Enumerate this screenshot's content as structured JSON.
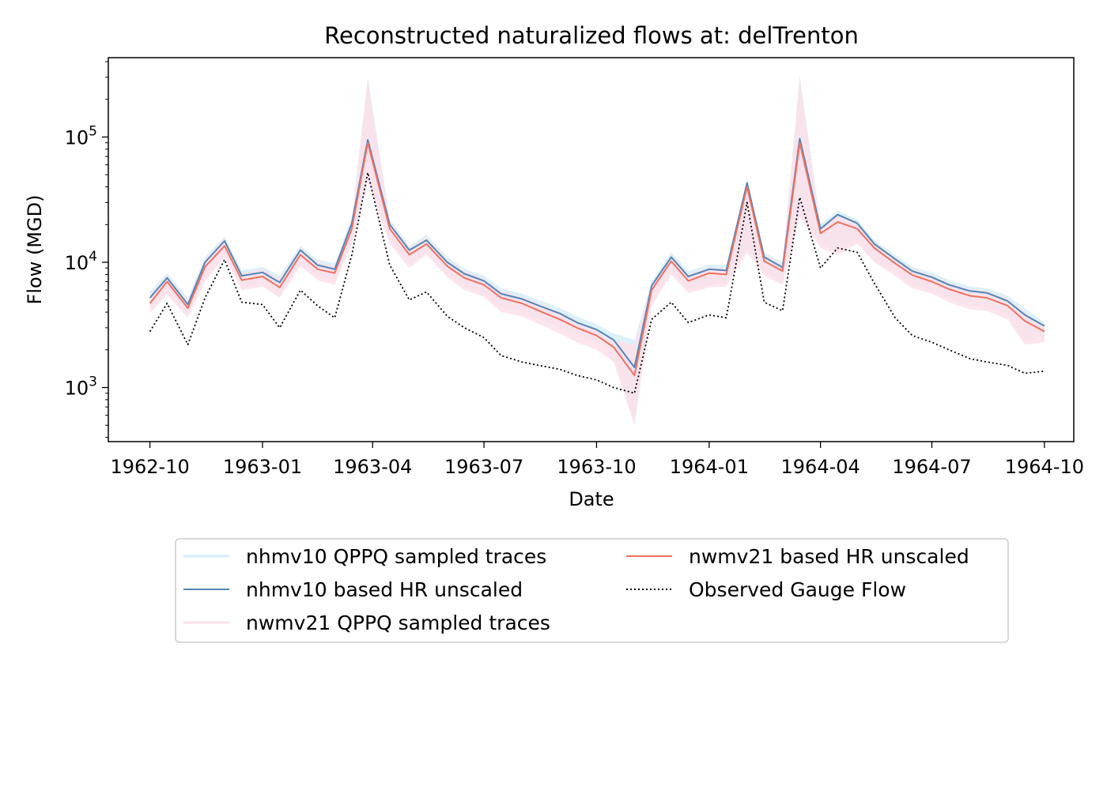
{
  "chart_data": {
    "type": "line",
    "title": "Reconstructed naturalized flows at: delTrenton",
    "xlabel": "Date",
    "ylabel": "Flow (MGD)",
    "yscale": "log",
    "xlim": [
      "1962-08-28",
      "1964-10-25"
    ],
    "ylim": [
      370,
      430000
    ],
    "x_ticks": [
      "1962-10",
      "1963-01",
      "1963-04",
      "1963-07",
      "1963-10",
      "1964-01",
      "1964-04",
      "1964-07",
      "1964-10"
    ],
    "y_ticks": [
      {
        "value": 1000,
        "base": "10",
        "exp": "3"
      },
      {
        "value": 10000,
        "base": "10",
        "exp": "4"
      },
      {
        "value": 100000,
        "base": "10",
        "exp": "5"
      }
    ],
    "legend_position": "below",
    "x": [
      "1962-10-01",
      "1962-10-15",
      "1962-11-01",
      "1962-11-15",
      "1962-12-01",
      "1962-12-15",
      "1963-01-01",
      "1963-01-15",
      "1963-02-01",
      "1963-02-15",
      "1963-03-01",
      "1963-03-15",
      "1963-03-28",
      "1963-04-15",
      "1963-05-01",
      "1963-05-15",
      "1963-06-01",
      "1963-06-15",
      "1963-07-01",
      "1963-07-15",
      "1963-08-01",
      "1963-08-15",
      "1963-09-01",
      "1963-09-15",
      "1963-10-01",
      "1963-10-15",
      "1963-11-01",
      "1963-11-15",
      "1963-12-01",
      "1963-12-15",
      "1964-01-01",
      "1964-01-15",
      "1964-02-01",
      "1964-02-15",
      "1964-03-01",
      "1964-03-15",
      "1964-04-01",
      "1964-04-15",
      "1964-05-01",
      "1964-05-15",
      "1964-06-01",
      "1964-06-15",
      "1964-07-01",
      "1964-07-15",
      "1964-08-01",
      "1964-08-15",
      "1964-09-01",
      "1964-09-15",
      "1964-10-01"
    ],
    "series": [
      {
        "name": "nhmv10 QPPQ sampled traces",
        "color": "#d6eef8",
        "style": "band",
        "low": [
          4200,
          5800,
          3800,
          7500,
          11500,
          6300,
          6800,
          5500,
          9800,
          7600,
          7000,
          14500,
          45000,
          15000,
          9500,
          12000,
          8000,
          6400,
          5600,
          4300,
          4000,
          3500,
          3000,
          2600,
          2300,
          1900,
          500,
          4800,
          8500,
          6000,
          6600,
          6800,
          13000,
          8200,
          7000,
          24000,
          14000,
          12000,
          15000,
          10500,
          8200,
          6500,
          5900,
          5100,
          4500,
          4400,
          3800,
          2400,
          2500
        ],
        "high": [
          5800,
          8200,
          5200,
          11000,
          16000,
          8600,
          9200,
          7800,
          13500,
          10500,
          9800,
          23000,
          300000,
          22000,
          13500,
          16500,
          11000,
          8900,
          7800,
          6200,
          5600,
          5000,
          4300,
          3700,
          3200,
          2700,
          2400,
          7000,
          12000,
          8500,
          9600,
          9500,
          46000,
          12000,
          10000,
          310000,
          20000,
          26000,
          22000,
          15000,
          11500,
          9200,
          8300,
          7200,
          6400,
          6200,
          5400,
          4300,
          3300
        ]
      },
      {
        "name": "nhmv10 based HR unscaled",
        "color": "#4f86b9",
        "style": "solid",
        "values": [
          5200,
          7500,
          4600,
          10000,
          14800,
          7800,
          8300,
          6900,
          12500,
          9500,
          8800,
          20500,
          95000,
          20000,
          12500,
          15000,
          10000,
          8100,
          7100,
          5600,
          5100,
          4500,
          3900,
          3300,
          2900,
          2400,
          1450,
          6500,
          11000,
          7700,
          8800,
          8600,
          43000,
          11000,
          9100,
          97000,
          18500,
          24000,
          20500,
          14000,
          10600,
          8500,
          7600,
          6600,
          5900,
          5700,
          4900,
          3800,
          3100
        ]
      },
      {
        "name": "nwmv21 QPPQ sampled traces",
        "color": "#fde0ea",
        "style": "band",
        "low": [
          3900,
          5500,
          3600,
          7000,
          11000,
          6000,
          6400,
          5200,
          9300,
          7200,
          6600,
          14000,
          44000,
          14000,
          9000,
          11500,
          7600,
          6000,
          5300,
          4000,
          3700,
          3200,
          2700,
          2300,
          2000,
          1600,
          500,
          4500,
          8000,
          5700,
          6300,
          6400,
          12000,
          7800,
          6600,
          23000,
          13000,
          11500,
          14000,
          10000,
          7800,
          6200,
          5600,
          4800,
          4200,
          4100,
          3500,
          2200,
          2300
        ],
        "high": [
          5500,
          7800,
          5000,
          10500,
          15500,
          8200,
          8800,
          7400,
          13000,
          10000,
          9300,
          22000,
          290000,
          21000,
          13000,
          15800,
          10500,
          8500,
          7400,
          5900,
          5300,
          4700,
          4000,
          3400,
          2900,
          2400,
          2200,
          6700,
          11500,
          8000,
          9100,
          9000,
          44000,
          11500,
          9500,
          300000,
          19000,
          24500,
          21000,
          14500,
          11000,
          8800,
          7900,
          6800,
          6100,
          5900,
          5100,
          4000,
          3100
        ]
      },
      {
        "name": "nwmv21 based HR unscaled",
        "color": "#f07060",
        "style": "solid",
        "values": [
          4700,
          7000,
          4300,
          9200,
          13500,
          7200,
          7700,
          6300,
          11500,
          8800,
          8200,
          18500,
          90000,
          18500,
          11500,
          14000,
          9300,
          7500,
          6600,
          5200,
          4700,
          4100,
          3500,
          3000,
          2600,
          2100,
          1250,
          6000,
          10200,
          7100,
          8200,
          8000,
          40000,
          10200,
          8500,
          90000,
          17000,
          21000,
          18500,
          13000,
          9800,
          7900,
          7000,
          6100,
          5400,
          5200,
          4500,
          3400,
          2800
        ]
      },
      {
        "name": "Observed Gauge Flow",
        "color": "#000000",
        "style": "dotted",
        "values": [
          2800,
          4700,
          2200,
          5200,
          10500,
          4800,
          4600,
          3000,
          6000,
          4500,
          3600,
          11500,
          52000,
          9500,
          5000,
          5800,
          3700,
          3000,
          2500,
          1800,
          1600,
          1500,
          1400,
          1250,
          1150,
          1000,
          900,
          3500,
          4800,
          3300,
          3800,
          3600,
          30000,
          4800,
          4100,
          33000,
          9000,
          13000,
          12000,
          6800,
          3600,
          2600,
          2300,
          2000,
          1700,
          1600,
          1500,
          1300,
          1350
        ]
      }
    ]
  }
}
